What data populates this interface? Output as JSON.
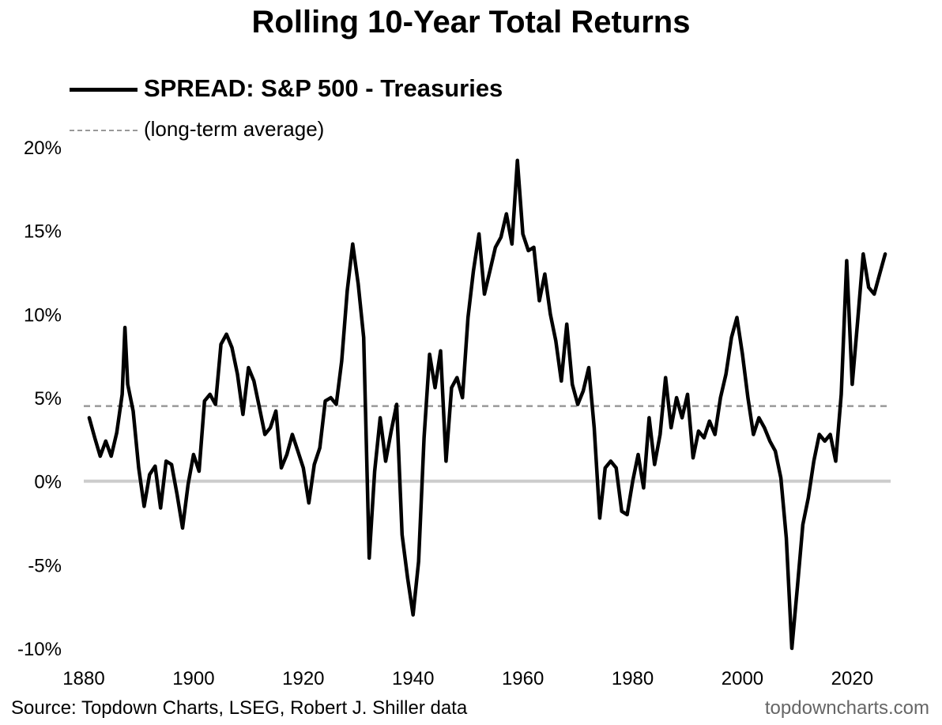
{
  "chart_data": {
    "type": "line",
    "title": "Rolling 10-Year Total Returns",
    "legend": {
      "placement": "top-left"
    },
    "series": [
      {
        "name": "SPREAD: S&P 500 - Treasuries",
        "color": "#000000",
        "points": [
          [
            1881,
            3.8
          ],
          [
            1882,
            2.6
          ],
          [
            1883,
            1.5
          ],
          [
            1884,
            2.4
          ],
          [
            1885,
            1.5
          ],
          [
            1886,
            2.9
          ],
          [
            1887,
            5.2
          ],
          [
            1887.5,
            9.2
          ],
          [
            1888,
            5.8
          ],
          [
            1889,
            4.2
          ],
          [
            1890,
            0.8
          ],
          [
            1891,
            -1.5
          ],
          [
            1892,
            0.4
          ],
          [
            1893,
            0.9
          ],
          [
            1894,
            -1.6
          ],
          [
            1895,
            1.2
          ],
          [
            1896,
            1.0
          ],
          [
            1897,
            -0.8
          ],
          [
            1898,
            -2.8
          ],
          [
            1899,
            -0.2
          ],
          [
            1900,
            1.6
          ],
          [
            1901,
            0.6
          ],
          [
            1902,
            4.8
          ],
          [
            1903,
            5.2
          ],
          [
            1904,
            4.6
          ],
          [
            1905,
            8.2
          ],
          [
            1906,
            8.8
          ],
          [
            1907,
            8.0
          ],
          [
            1908,
            6.4
          ],
          [
            1909,
            4.0
          ],
          [
            1910,
            6.8
          ],
          [
            1911,
            6.0
          ],
          [
            1912,
            4.4
          ],
          [
            1913,
            2.8
          ],
          [
            1914,
            3.2
          ],
          [
            1915,
            4.2
          ],
          [
            1916,
            0.8
          ],
          [
            1917,
            1.6
          ],
          [
            1918,
            2.8
          ],
          [
            1919,
            1.8
          ],
          [
            1920,
            0.8
          ],
          [
            1921,
            -1.3
          ],
          [
            1922,
            1.0
          ],
          [
            1923,
            2.0
          ],
          [
            1924,
            4.8
          ],
          [
            1925,
            5.0
          ],
          [
            1926,
            4.6
          ],
          [
            1927,
            7.2
          ],
          [
            1928,
            11.4
          ],
          [
            1929,
            14.2
          ],
          [
            1930,
            11.8
          ],
          [
            1931,
            8.6
          ],
          [
            1932,
            -4.6
          ],
          [
            1933,
            0.6
          ],
          [
            1934,
            3.8
          ],
          [
            1935,
            1.2
          ],
          [
            1936,
            3.0
          ],
          [
            1937,
            4.6
          ],
          [
            1938,
            -3.2
          ],
          [
            1939,
            -5.8
          ],
          [
            1940,
            -8.0
          ],
          [
            1941,
            -4.8
          ],
          [
            1942,
            2.6
          ],
          [
            1943,
            7.6
          ],
          [
            1944,
            5.6
          ],
          [
            1945,
            7.8
          ],
          [
            1946,
            1.2
          ],
          [
            1947,
            5.6
          ],
          [
            1948,
            6.2
          ],
          [
            1949,
            5.0
          ],
          [
            1950,
            9.8
          ],
          [
            1951,
            12.6
          ],
          [
            1952,
            14.8
          ],
          [
            1953,
            11.2
          ],
          [
            1954,
            12.6
          ],
          [
            1955,
            14.0
          ],
          [
            1956,
            14.6
          ],
          [
            1957,
            16.0
          ],
          [
            1958,
            14.2
          ],
          [
            1959,
            19.2
          ],
          [
            1960,
            14.8
          ],
          [
            1961,
            13.8
          ],
          [
            1962,
            14.0
          ],
          [
            1963,
            10.8
          ],
          [
            1964,
            12.4
          ],
          [
            1965,
            10.0
          ],
          [
            1966,
            8.4
          ],
          [
            1967,
            6.0
          ],
          [
            1968,
            9.4
          ],
          [
            1969,
            5.8
          ],
          [
            1970,
            4.6
          ],
          [
            1971,
            5.4
          ],
          [
            1972,
            6.8
          ],
          [
            1973,
            3.2
          ],
          [
            1974,
            -2.2
          ],
          [
            1975,
            0.8
          ],
          [
            1976,
            1.2
          ],
          [
            1977,
            0.8
          ],
          [
            1978,
            -1.8
          ],
          [
            1979,
            -2.0
          ],
          [
            1980,
            0.0
          ],
          [
            1981,
            1.6
          ],
          [
            1982,
            -0.4
          ],
          [
            1983,
            3.8
          ],
          [
            1984,
            1.0
          ],
          [
            1985,
            2.8
          ],
          [
            1986,
            6.2
          ],
          [
            1987,
            3.2
          ],
          [
            1988,
            5.0
          ],
          [
            1989,
            3.8
          ],
          [
            1990,
            5.2
          ],
          [
            1991,
            1.4
          ],
          [
            1992,
            3.0
          ],
          [
            1993,
            2.6
          ],
          [
            1994,
            3.6
          ],
          [
            1995,
            2.8
          ],
          [
            1996,
            5.0
          ],
          [
            1997,
            6.4
          ],
          [
            1998,
            8.6
          ],
          [
            1999,
            9.8
          ],
          [
            2000,
            7.6
          ],
          [
            2001,
            5.0
          ],
          [
            2002,
            2.8
          ],
          [
            2003,
            3.8
          ],
          [
            2004,
            3.2
          ],
          [
            2005,
            2.4
          ],
          [
            2006,
            1.8
          ],
          [
            2007,
            0.2
          ],
          [
            2008,
            -3.4
          ],
          [
            2009,
            -10.0
          ],
          [
            2010,
            -6.4
          ],
          [
            2011,
            -2.6
          ],
          [
            2012,
            -1.0
          ],
          [
            2013,
            1.2
          ],
          [
            2014,
            2.8
          ],
          [
            2015,
            2.4
          ],
          [
            2016,
            2.8
          ],
          [
            2017,
            1.2
          ],
          [
            2018,
            5.2
          ],
          [
            2019,
            13.2
          ],
          [
            2020,
            5.8
          ],
          [
            2021,
            9.6
          ],
          [
            2022,
            13.6
          ],
          [
            2023,
            11.6
          ],
          [
            2024,
            11.2
          ],
          [
            2025,
            12.4
          ],
          [
            2026,
            13.6
          ]
        ]
      }
    ],
    "reference_line": {
      "label": "(long-term average)",
      "value": 4.5,
      "color": "#999999",
      "style": "dashed"
    },
    "zero_line_color": "#cccccc",
    "y_ticks": [
      {
        "value": 20,
        "label": "20%"
      },
      {
        "value": 15,
        "label": "15%"
      },
      {
        "value": 10,
        "label": "10%"
      },
      {
        "value": 5,
        "label": "5%"
      },
      {
        "value": 0,
        "label": "0%"
      },
      {
        "value": -5,
        "label": "-5%"
      },
      {
        "value": -10,
        "label": "-10%"
      }
    ],
    "x_ticks": [
      {
        "value": 1880,
        "label": "1880"
      },
      {
        "value": 1900,
        "label": "1900"
      },
      {
        "value": 1920,
        "label": "1920"
      },
      {
        "value": 1940,
        "label": "1940"
      },
      {
        "value": 1960,
        "label": "1960"
      },
      {
        "value": 1980,
        "label": "1980"
      },
      {
        "value": 2000,
        "label": "2000"
      },
      {
        "value": 2020,
        "label": "2020"
      }
    ],
    "xlim": [
      1880,
      2027
    ],
    "ylim": [
      -10,
      20
    ],
    "grid": false,
    "source": "Source: Topdown Charts, LSEG, Robert J. Shiller data",
    "brand": "topdowncharts.com"
  }
}
